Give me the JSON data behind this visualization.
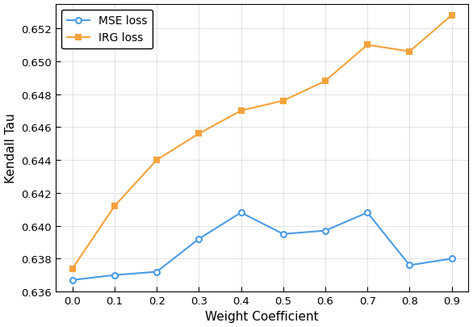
{
  "x": [
    0.0,
    0.1,
    0.2,
    0.3,
    0.4,
    0.5,
    0.6,
    0.7,
    0.8,
    0.9
  ],
  "mse_loss": [
    0.6367,
    0.637,
    0.6372,
    0.6392,
    0.6408,
    0.6395,
    0.6397,
    0.6408,
    0.6376,
    0.638
  ],
  "irg_loss": [
    0.6374,
    0.6412,
    0.644,
    0.6456,
    0.647,
    0.6476,
    0.6488,
    0.651,
    0.6506,
    0.6528
  ],
  "mse_color": "#4C9BE8",
  "irg_color": "#F5A23C",
  "mse_label": "MSE loss",
  "irg_label": "IRG loss",
  "xlabel": "Weight Coefficient",
  "ylabel": "Kendall Tau",
  "ylim": [
    0.636,
    0.6535
  ],
  "xlim": [
    -0.04,
    0.94
  ],
  "yticks": [
    0.636,
    0.638,
    0.64,
    0.642,
    0.644,
    0.646,
    0.648,
    0.65,
    0.652
  ],
  "xticks": [
    0.0,
    0.1,
    0.2,
    0.3,
    0.4,
    0.5,
    0.6,
    0.7,
    0.8,
    0.9
  ],
  "grid_color": "#dddddd",
  "background_color": "#ffffff"
}
